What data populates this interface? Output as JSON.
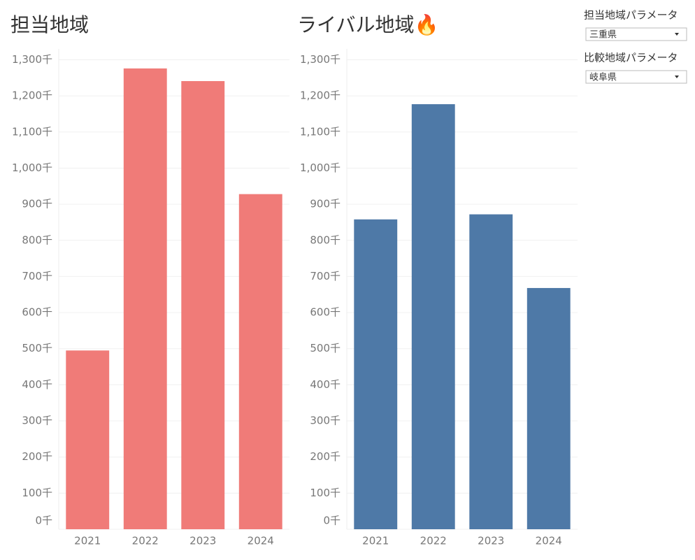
{
  "chart_data": [
    {
      "type": "bar",
      "title": "担当地域",
      "categories": [
        "2021",
        "2022",
        "2023",
        "2024"
      ],
      "values": [
        495,
        1276,
        1241,
        928
      ],
      "color": "#f07b78",
      "ylim": [
        0,
        1330
      ],
      "grid": true,
      "yticks": [
        {
          "value": 0,
          "label": "0千"
        },
        {
          "value": 100,
          "label": "100千"
        },
        {
          "value": 200,
          "label": "200千"
        },
        {
          "value": 300,
          "label": "300千"
        },
        {
          "value": 400,
          "label": "400千"
        },
        {
          "value": 500,
          "label": "500千"
        },
        {
          "value": 600,
          "label": "600千"
        },
        {
          "value": 700,
          "label": "700千"
        },
        {
          "value": 800,
          "label": "800千"
        },
        {
          "value": 900,
          "label": "900千"
        },
        {
          "value": 1000,
          "label": "1,000千"
        },
        {
          "value": 1100,
          "label": "1,100千"
        },
        {
          "value": 1200,
          "label": "1,200千"
        },
        {
          "value": 1300,
          "label": "1,300千"
        }
      ]
    },
    {
      "type": "bar",
      "title": "ライバル地域🔥",
      "categories": [
        "2021",
        "2022",
        "2023",
        "2024"
      ],
      "values": [
        858,
        1177,
        872,
        668
      ],
      "color": "#4e79a7",
      "ylim": [
        0,
        1330
      ],
      "grid": true,
      "yticks": [
        {
          "value": 0,
          "label": "0千"
        },
        {
          "value": 100,
          "label": "100千"
        },
        {
          "value": 200,
          "label": "200千"
        },
        {
          "value": 300,
          "label": "300千"
        },
        {
          "value": 400,
          "label": "400千"
        },
        {
          "value": 500,
          "label": "500千"
        },
        {
          "value": 600,
          "label": "600千"
        },
        {
          "value": 700,
          "label": "700千"
        },
        {
          "value": 800,
          "label": "800千"
        },
        {
          "value": 900,
          "label": "900千"
        },
        {
          "value": 1000,
          "label": "1,000千"
        },
        {
          "value": 1100,
          "label": "1,100千"
        },
        {
          "value": 1200,
          "label": "1,200千"
        },
        {
          "value": 1300,
          "label": "1,300千"
        }
      ]
    }
  ],
  "controls": [
    {
      "label": "担当地域パラメータ",
      "value": "三重県"
    },
    {
      "label": "比較地域パラメータ",
      "value": "岐阜県"
    }
  ]
}
